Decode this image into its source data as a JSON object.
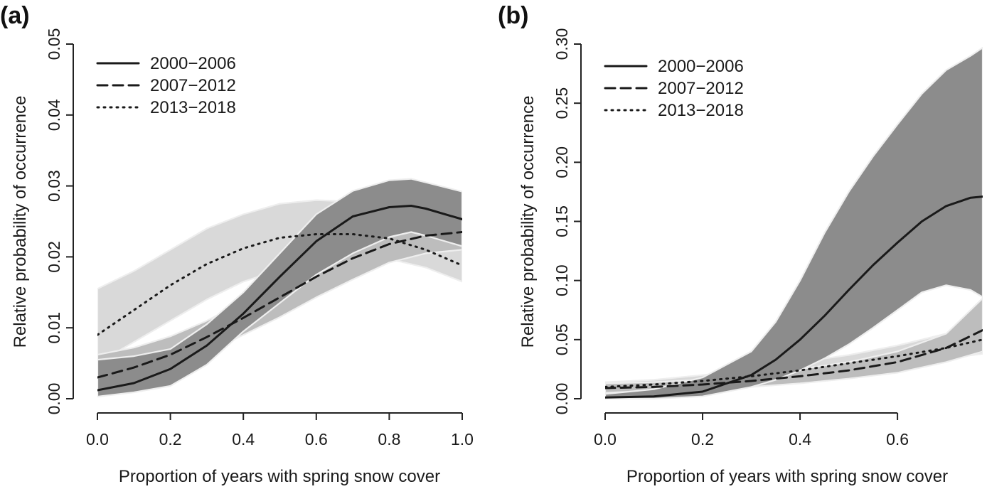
{
  "colors": {
    "line": "#1a1a1a",
    "band_2000_2006": "#8c8c8c",
    "band_2007_2012": "#bdbdbd",
    "band_2013_2018": "#d9d9d9",
    "band_edge": "#eeeeee"
  },
  "chart_data": [
    {
      "panel_label": "(a)",
      "type": "line",
      "xlabel": "Proportion of years with spring snow cover",
      "ylabel": "Relative probability of occurrence",
      "xlim": [
        0,
        1
      ],
      "ylim": [
        0,
        0.05
      ],
      "xticks": [
        "0.0",
        "0.2",
        "0.4",
        "0.6",
        "0.8",
        "1.0"
      ],
      "yticks": [
        "0.00",
        "0.01",
        "0.02",
        "0.03",
        "0.04",
        "0.05"
      ],
      "grid": false,
      "legend_position": "top-left",
      "series": [
        {
          "name": "2000−2006",
          "line_style": "solid",
          "x": [
            0.0,
            0.1,
            0.2,
            0.3,
            0.4,
            0.5,
            0.6,
            0.7,
            0.8,
            0.86,
            0.9,
            1.0
          ],
          "y": [
            0.0012,
            0.0022,
            0.0042,
            0.0075,
            0.012,
            0.0172,
            0.0222,
            0.0257,
            0.027,
            0.0272,
            0.0268,
            0.0253
          ],
          "lower": [
            0.0003,
            0.0009,
            0.0018,
            0.0048,
            0.0095,
            0.0135,
            0.0175,
            0.0205,
            0.0228,
            0.0235,
            0.023,
            0.0215
          ],
          "upper": [
            0.0055,
            0.006,
            0.007,
            0.0105,
            0.015,
            0.0205,
            0.026,
            0.0293,
            0.0308,
            0.031,
            0.0305,
            0.0292
          ]
        },
        {
          "name": "2007−2012",
          "line_style": "dashed",
          "x": [
            0.0,
            0.1,
            0.2,
            0.3,
            0.4,
            0.5,
            0.6,
            0.7,
            0.8,
            0.9,
            1.0
          ],
          "y": [
            0.003,
            0.0044,
            0.0062,
            0.0087,
            0.0114,
            0.0143,
            0.0172,
            0.0198,
            0.0218,
            0.023,
            0.0235
          ],
          "lower": [
            0.0015,
            0.0025,
            0.0042,
            0.0065,
            0.009,
            0.0115,
            0.0143,
            0.0168,
            0.0192,
            0.0205,
            0.021
          ],
          "upper": [
            0.0062,
            0.0072,
            0.0088,
            0.011,
            0.0137,
            0.0168,
            0.0198,
            0.0225,
            0.0245,
            0.0257,
            0.0262
          ]
        },
        {
          "name": "2013−2018",
          "line_style": "dotted",
          "x": [
            0.0,
            0.1,
            0.2,
            0.3,
            0.4,
            0.5,
            0.6,
            0.7,
            0.8,
            0.9,
            1.0
          ],
          "y": [
            0.009,
            0.0125,
            0.016,
            0.019,
            0.0212,
            0.0227,
            0.0232,
            0.0232,
            0.0226,
            0.021,
            0.0188
          ],
          "lower": [
            0.005,
            0.008,
            0.011,
            0.014,
            0.0165,
            0.0182,
            0.019,
            0.0195,
            0.0197,
            0.0185,
            0.0165
          ],
          "upper": [
            0.0155,
            0.018,
            0.021,
            0.024,
            0.026,
            0.0275,
            0.028,
            0.0278,
            0.027,
            0.025,
            0.022
          ]
        }
      ]
    },
    {
      "panel_label": "(b)",
      "type": "line",
      "xlabel": "Proportion of years with spring snow cover",
      "ylabel": "Relative probability of occurrence",
      "xlim": [
        0,
        0.775
      ],
      "ylim": [
        0,
        0.3
      ],
      "xticks": [
        "0.0",
        "0.2",
        "0.4",
        "0.6"
      ],
      "yticks": [
        "0.00",
        "0.05",
        "0.10",
        "0.15",
        "0.20",
        "0.25",
        "0.30"
      ],
      "grid": false,
      "legend_position": "top-left",
      "series": [
        {
          "name": "2000−2006",
          "line_style": "solid",
          "x": [
            0.0,
            0.1,
            0.2,
            0.3,
            0.35,
            0.4,
            0.45,
            0.5,
            0.55,
            0.6,
            0.65,
            0.7,
            0.75,
            0.775
          ],
          "y": [
            0.001,
            0.002,
            0.006,
            0.02,
            0.033,
            0.05,
            0.07,
            0.092,
            0.113,
            0.132,
            0.15,
            0.163,
            0.17,
            0.171
          ],
          "lower": [
            0.0,
            0.0,
            0.002,
            0.01,
            0.016,
            0.024,
            0.034,
            0.046,
            0.06,
            0.075,
            0.09,
            0.096,
            0.092,
            0.086
          ],
          "upper": [
            0.004,
            0.008,
            0.018,
            0.04,
            0.065,
            0.1,
            0.14,
            0.175,
            0.205,
            0.232,
            0.258,
            0.278,
            0.29,
            0.297
          ]
        },
        {
          "name": "2007−2012",
          "line_style": "dashed",
          "x": [
            0.0,
            0.1,
            0.2,
            0.3,
            0.4,
            0.5,
            0.6,
            0.7,
            0.775
          ],
          "y": [
            0.009,
            0.01,
            0.012,
            0.015,
            0.019,
            0.024,
            0.031,
            0.043,
            0.058
          ],
          "lower": [
            0.005,
            0.007,
            0.008,
            0.01,
            0.013,
            0.017,
            0.022,
            0.031,
            0.04
          ],
          "upper": [
            0.013,
            0.014,
            0.016,
            0.02,
            0.025,
            0.031,
            0.04,
            0.055,
            0.085
          ]
        },
        {
          "name": "2013−2018",
          "line_style": "dotted",
          "x": [
            0.0,
            0.1,
            0.2,
            0.3,
            0.4,
            0.5,
            0.6,
            0.7,
            0.775
          ],
          "y": [
            0.01,
            0.012,
            0.015,
            0.019,
            0.024,
            0.03,
            0.036,
            0.043,
            0.05
          ],
          "lower": [
            0.006,
            0.008,
            0.011,
            0.014,
            0.018,
            0.024,
            0.029,
            0.034,
            0.038
          ],
          "upper": [
            0.014,
            0.016,
            0.02,
            0.025,
            0.031,
            0.037,
            0.045,
            0.055,
            0.066
          ]
        }
      ]
    }
  ]
}
